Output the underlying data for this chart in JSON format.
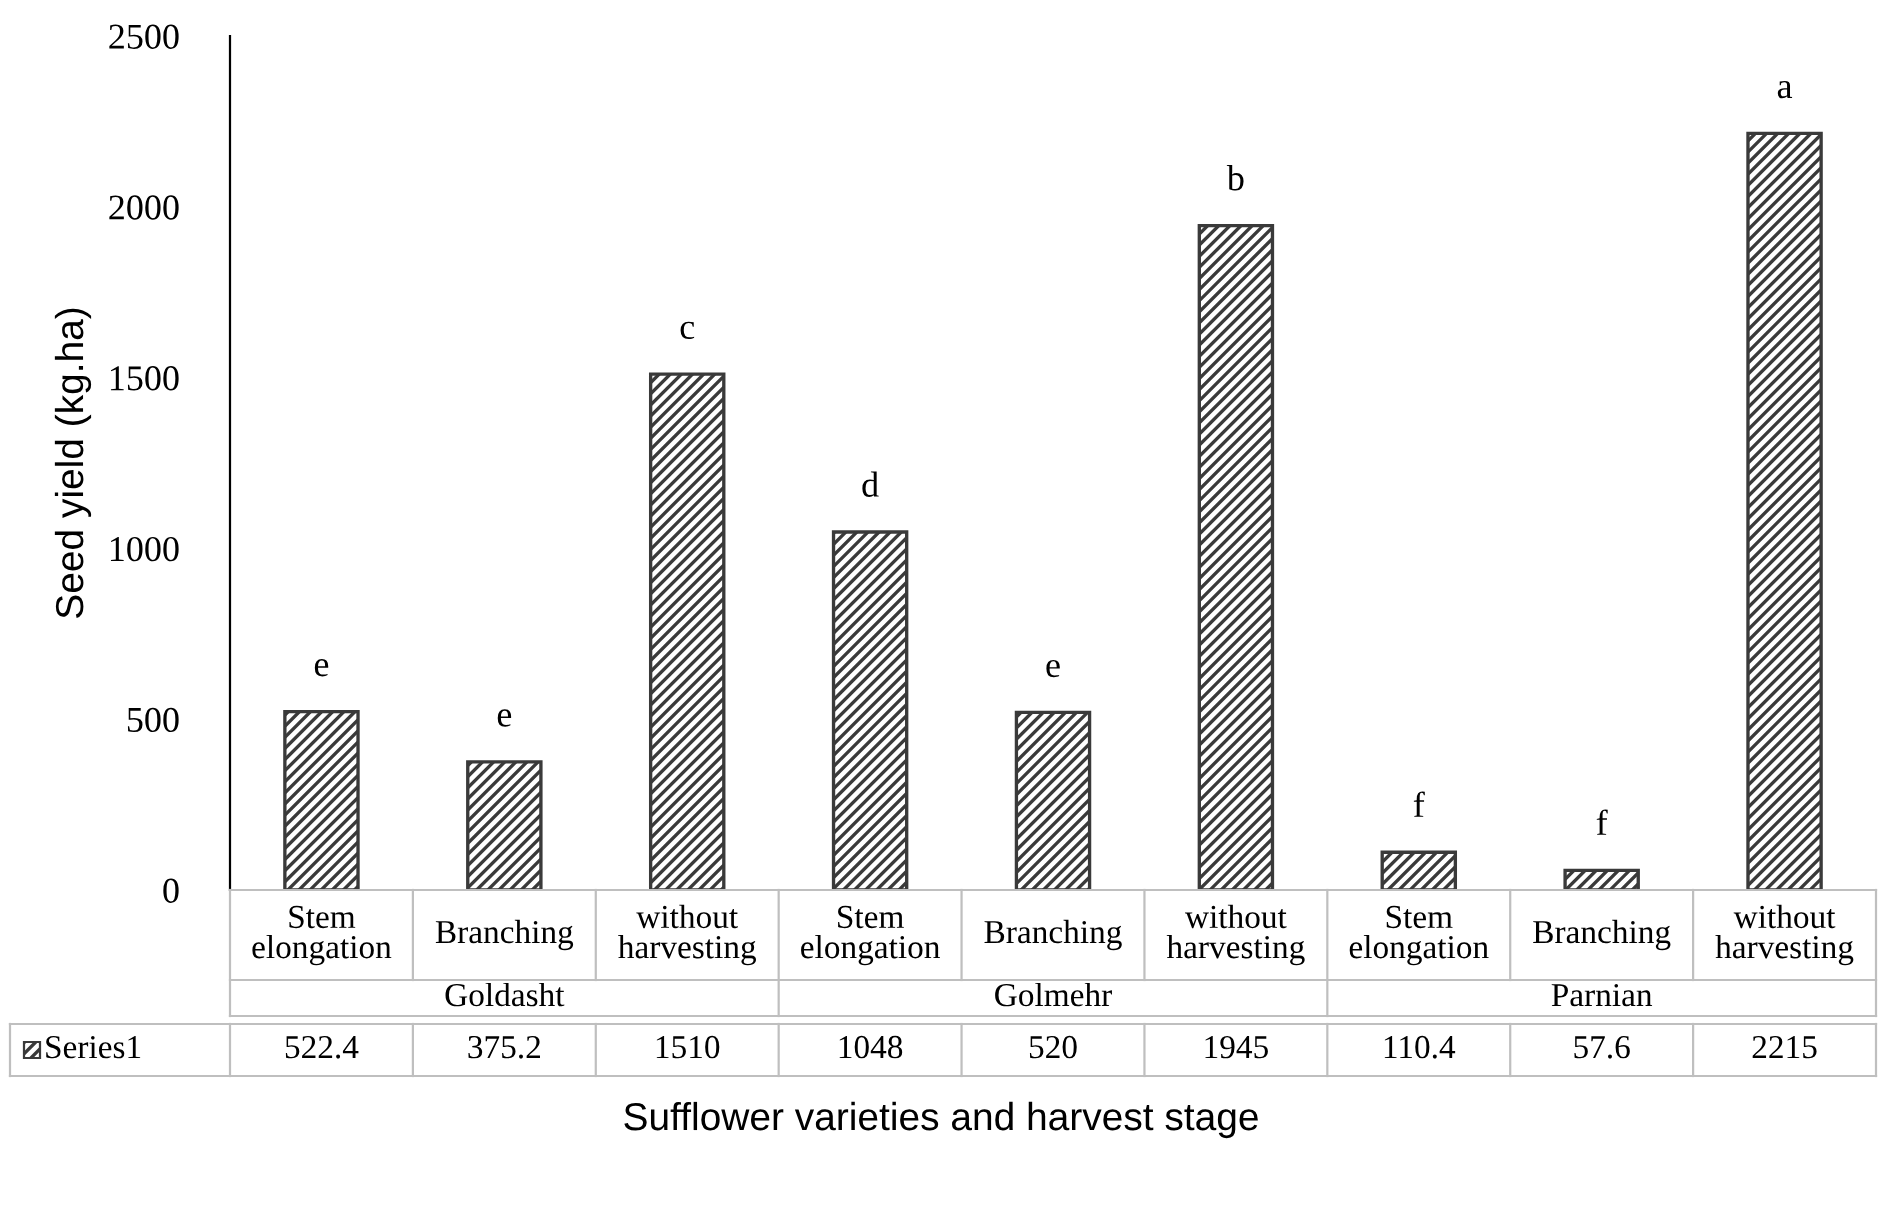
{
  "chart_data": {
    "type": "bar",
    "ylabel": "Seed yield (kg.ha)",
    "xlabel": "Sufflower varieties and harvest stage",
    "categories": [
      "Stem elongation",
      "Branching",
      "without harvesting",
      "Stem elongation",
      "Branching",
      "without harvesting",
      "Stem elongation",
      "Branching",
      "without harvesting"
    ],
    "series": [
      {
        "name": "Series1",
        "color": "#3a3a3a",
        "values": [
          522.4,
          375.2,
          1510,
          1048,
          520,
          1945,
          110.4,
          57.6,
          2215
        ]
      }
    ],
    "annotations": [
      "e",
      "e",
      "c",
      "d",
      "e",
      "b",
      "f",
      "f",
      "a",
      "Goldasht",
      "Golmehr",
      "Parnian"
    ],
    "ylim": [
      0,
      2500
    ],
    "yticks": [
      0,
      500,
      1000,
      1500,
      2000,
      2500
    ],
    "data_labels": true,
    "grid": false,
    "legend": "bottom"
  }
}
